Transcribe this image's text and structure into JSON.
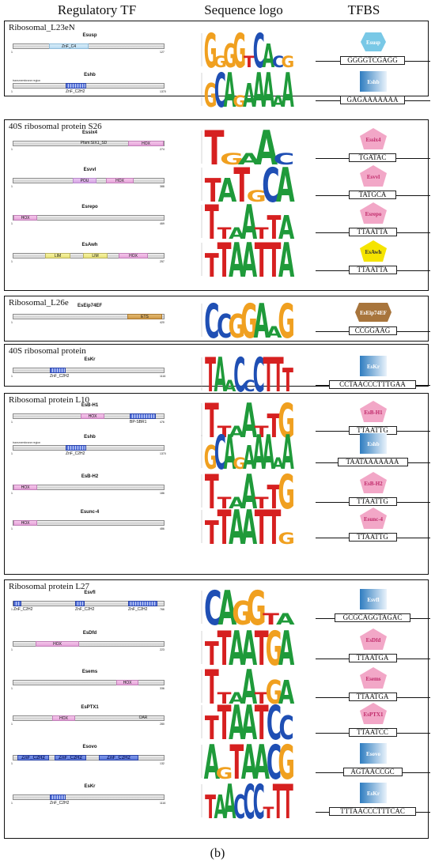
{
  "headers": {
    "regulatory_tf": "Regulatory TF",
    "sequence_logo": "Sequence logo",
    "tfbs": "TFBS"
  },
  "caption": "(b)",
  "colors": {
    "A": "#1f9a3a",
    "C": "#1f4fb4",
    "G": "#f0a020",
    "T": "#d62020",
    "hox": "#f3c6ea",
    "pou": "#e0b4ec",
    "lim": "#eee893",
    "ets": "#d9a85c",
    "zf": "#7f98e8",
    "zc4": "#c9e5f5",
    "hexagon": "#79c8e6",
    "square": "#3a87c8",
    "pentagon_pink": "#f2a7c7",
    "pentagon_yellow": "#f5e400",
    "pentagon_brown": "#a8753c"
  },
  "groups": [
    {
      "title": "Ribosomal_L23eN",
      "entries": [
        {
          "tf": "Esusp",
          "len": "127",
          "domains": [
            {
              "label": "ZnF_C4",
              "kind": "zc4"
            }
          ],
          "site": "GGGGTCGAGG",
          "shape": "hexagon",
          "logo": "GGGGTCACG"
        },
        {
          "tf": "Eshb",
          "len": "1370",
          "side": "transmembrane region",
          "domains": [
            {
              "label": "ZnF_C2H2",
              "kind": "zf"
            }
          ],
          "site": "GAGAAAAAAA",
          "shape": "square",
          "logo": "GCAGAAAAA"
        }
      ]
    },
    {
      "title": "40S ribosomal protein S26",
      "entries": [
        {
          "tf": "Essix4",
          "len": "274",
          "domains": [
            {
              "label": "Pfam:SIX1_SD",
              "kind": "six"
            },
            {
              "label": "HOX",
              "kind": "hox"
            }
          ],
          "site": "TGATAC",
          "shape": "pentagon",
          "logo": "TGAAC"
        },
        {
          "tf": "Esvvl",
          "len": "388",
          "domains": [
            {
              "label": "POU",
              "kind": "pou"
            },
            {
              "label": "HOX",
              "kind": "hox"
            }
          ],
          "site": "TATGCA",
          "shape": "pentagon",
          "logo": "TATGCA"
        },
        {
          "tf": "Esrepo",
          "len": "469",
          "domains": [
            {
              "label": "HOX",
              "kind": "hox"
            }
          ],
          "site": "TTAATTA",
          "shape": "pentagon",
          "logo": "TTAATTA"
        },
        {
          "tf": "EsAwh",
          "len": "257",
          "domains": [
            {
              "label": "LIM",
              "kind": "lim"
            },
            {
              "label": "LIM",
              "kind": "lim"
            },
            {
              "label": "HOX",
              "kind": "hox"
            }
          ],
          "site": "TTAATTA",
          "shape": "pentagon-yellow",
          "logo": "TTAATTA"
        }
      ]
    },
    {
      "title": "Ribosomal_L26e",
      "entries": [
        {
          "tf": "EsEip74EF",
          "len": "420",
          "domains": [
            {
              "label": "ETS",
              "kind": "ets"
            }
          ],
          "site": "CCGGAAG",
          "shape": "pentagon-brown",
          "logo": "CCGGAAG"
        }
      ]
    },
    {
      "title": "40S ribosomal protein",
      "entries": [
        {
          "tf": "EsKr",
          "len": "1116",
          "domains": [
            {
              "label": "ZnF_C2H2",
              "kind": "zf"
            }
          ],
          "site": "CCTAACCCTTTGAA",
          "shape": "square",
          "logo": "TAACCCTTT"
        }
      ]
    },
    {
      "title": "Ribosomal protein L10",
      "entries": [
        {
          "tf": "EsB-H1",
          "len": "476",
          "domains": [
            {
              "label": "HOX",
              "kind": "hox"
            },
            {
              "label": "BP-SBR1",
              "kind": "zf"
            }
          ],
          "site": "TTAATTG",
          "shape": "pentagon",
          "logo": "TTAATTG"
        },
        {
          "tf": "Eshb",
          "len": "1370",
          "side": "transmembrane region",
          "domains": [
            {
              "label": "ZnF_C2H2",
              "kind": "zf"
            }
          ],
          "site": "TAATAAAAAAA",
          "shape": "square",
          "logo": "GCAGAAAAA"
        },
        {
          "tf": "EsB-H2",
          "len": "186",
          "domains": [
            {
              "label": "HOX",
              "kind": "hox"
            }
          ],
          "site": "TTAATTG",
          "shape": "pentagon",
          "logo": "TTAATTG"
        },
        {
          "tf": "Esunc-4",
          "len": "486",
          "domains": [
            {
              "label": "HOX",
              "kind": "hox"
            }
          ],
          "site": "TTAATTG",
          "shape": "pentagon",
          "logo": "TTAATTG"
        }
      ]
    },
    {
      "title": "Ribosomal protein L27",
      "entries": [
        {
          "tf": "Esvfl",
          "len": "766",
          "domains": [
            {
              "label": "ZnF_C2H2",
              "kind": "zf"
            },
            {
              "label": "ZnF_C2H2",
              "kind": "zf"
            },
            {
              "label": "ZnF_C2H2",
              "kind": "zf"
            }
          ],
          "site": "GCGCAGGTAGAC",
          "shape": "square",
          "logo": "CAGGTA"
        },
        {
          "tf": "EsDfd",
          "len": "223",
          "domains": [
            {
              "label": "HOX",
              "kind": "hox"
            }
          ],
          "site": "TTAATGA",
          "shape": "pentagon",
          "logo": "TTAATGA"
        },
        {
          "tf": "Esems",
          "len": "336",
          "domains": [
            {
              "label": "HOX",
              "kind": "hox"
            }
          ],
          "site": "TTAATGA",
          "shape": "pentagon",
          "logo": "TTAATGA"
        },
        {
          "tf": "EsPTX1",
          "len": "280",
          "domains": [
            {
              "label": "HOX",
              "kind": "hox"
            },
            {
              "label": "OAR",
              "kind": "dar"
            }
          ],
          "site": "TTAATCC",
          "shape": "pentagon",
          "logo": "TTAATCC"
        },
        {
          "tf": "Esovo",
          "len": "132",
          "domains": [
            {
              "label": "ZnF_C2H2",
              "kind": "zfbig"
            },
            {
              "label": "ZnF_C2H2",
              "kind": "zfbig"
            },
            {
              "label": "ZnF_C2H2",
              "kind": "zfbig"
            }
          ],
          "site": "AGTAACCGC",
          "shape": "square",
          "logo": "AGTAACG"
        },
        {
          "tf": "EsKr",
          "len": "1116",
          "domains": [
            {
              "label": "ZnF_C2H2",
              "kind": "zf"
            }
          ],
          "site": "TTTAACCCTTTCAC",
          "shape": "square",
          "logo": "TAACCCTTT"
        }
      ]
    }
  ]
}
